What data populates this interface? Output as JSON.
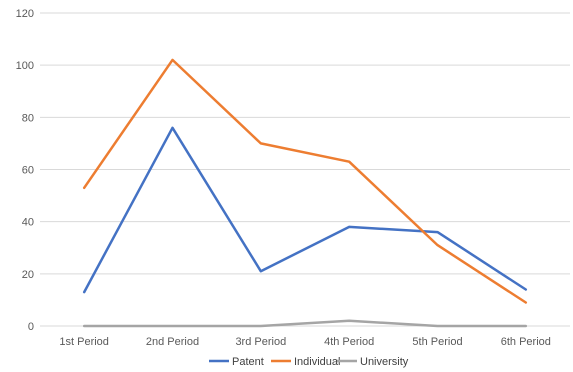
{
  "chart_data": {
    "type": "line",
    "title": "",
    "xlabel": "",
    "ylabel": "",
    "categories": [
      "1st Period",
      "2nd Period",
      "3rd Period",
      "4th Period",
      "5th Period",
      "6th Period"
    ],
    "ylim": [
      0,
      120
    ],
    "yticks": [
      0,
      20,
      40,
      60,
      80,
      100,
      120
    ],
    "grid": true,
    "legend_position": "bottom",
    "series": [
      {
        "name": "Patent",
        "color": "#4472c4",
        "values": [
          13,
          76,
          21,
          38,
          36,
          14
        ]
      },
      {
        "name": "Individual",
        "color": "#ed7d31",
        "values": [
          53,
          102,
          70,
          63,
          31,
          9
        ]
      },
      {
        "name": "University",
        "color": "#a5a5a5",
        "values": [
          0,
          0,
          0,
          2,
          0,
          0
        ]
      }
    ]
  }
}
